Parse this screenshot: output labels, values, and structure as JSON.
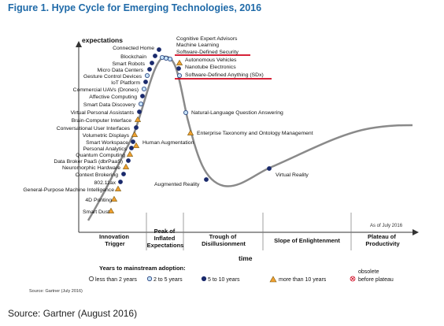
{
  "figure": {
    "title": "Figure 1. Hype Cycle for Emerging Technologies, 2016",
    "source_small": "Source: Gartner (July 2016)",
    "source_caption": "Source: Gartner (August 2016)"
  },
  "chart_data": {
    "type": "scatter",
    "title": "Hype Cycle for Emerging Technologies, 2016",
    "ylabel": "expectations",
    "xlabel": "time",
    "as_of": "As of July 2016",
    "phases": [
      "Innovation Trigger",
      "Peak of Inflated Expectations",
      "Trough of Disillusionment",
      "Slope of Enlightenment",
      "Plateau of Productivity"
    ],
    "legend": {
      "title": "Years to mainstream adoption:",
      "items": [
        {
          "key": "lt2",
          "label": "less than 2 years",
          "marker": "open-circle"
        },
        {
          "key": "2to5",
          "label": "2 to 5 years",
          "marker": "light-blue-circle"
        },
        {
          "key": "5to10",
          "label": "5 to 10 years",
          "marker": "dark-blue-circle"
        },
        {
          "key": "gt10",
          "label": "more than 10 years",
          "marker": "orange-triangle"
        },
        {
          "key": "obsolete",
          "label": "obsolete before plateau",
          "label_top": "obsolete",
          "label_bottom": "before plateau",
          "marker": "red-x-circle"
        }
      ]
    },
    "highlighted": [
      "Software-Defined Security",
      "Software-Defined Anything (SDx)"
    ],
    "technologies": [
      {
        "name": "Smart Dust",
        "category": "gt10"
      },
      {
        "name": "4D Printing",
        "category": "gt10"
      },
      {
        "name": "General-Purpose Machine Intelligence",
        "category": "gt10"
      },
      {
        "name": "802.11ax",
        "category": "5to10"
      },
      {
        "name": "Context Brokering",
        "category": "5to10"
      },
      {
        "name": "Neuromorphic Hardware",
        "category": "gt10"
      },
      {
        "name": "Data Broker PaaS (dbrPaaS)",
        "category": "5to10"
      },
      {
        "name": "Quantum Computing",
        "category": "gt10"
      },
      {
        "name": "Personal Analytics",
        "category": "5to10"
      },
      {
        "name": "Smart Workspace",
        "category": "5to10"
      },
      {
        "name": "Volumetric Displays",
        "category": "gt10"
      },
      {
        "name": "Conversational User Interfaces",
        "category": "5to10"
      },
      {
        "name": "Brain-Computer Interface",
        "category": "gt10"
      },
      {
        "name": "Virtual Personal Assistants",
        "category": "5to10"
      },
      {
        "name": "Smart Data Discovery",
        "category": "2to5"
      },
      {
        "name": "Affective Computing",
        "category": "5to10"
      },
      {
        "name": "Commercial UAVs (Drones)",
        "category": "2to5"
      },
      {
        "name": "IoT Platform",
        "category": "5to10"
      },
      {
        "name": "Gesture Control Devices",
        "category": "2to5"
      },
      {
        "name": "Micro Data Centers",
        "category": "5to10"
      },
      {
        "name": "Smart Robots",
        "category": "5to10"
      },
      {
        "name": "Blockchain",
        "category": "5to10"
      },
      {
        "name": "Connected Home",
        "category": "5to10"
      },
      {
        "name": "Cognitive Expert Advisors",
        "category": "2to5"
      },
      {
        "name": "Machine Learning",
        "category": "2to5"
      },
      {
        "name": "Software-Defined Security",
        "category": "2to5"
      },
      {
        "name": "Autonomous Vehicles",
        "category": "gt10"
      },
      {
        "name": "Nanotube Electronics",
        "category": "5to10"
      },
      {
        "name": "Software-Defined Anything (SDx)",
        "category": "2to5"
      },
      {
        "name": "Human Augmentation",
        "category": "gt10"
      },
      {
        "name": "Natural-Language Question Answering",
        "category": "2to5"
      },
      {
        "name": "Enterprise Taxonomy and Ontology Management",
        "category": "gt10"
      },
      {
        "name": "Augmented Reality",
        "category": "5to10"
      },
      {
        "name": "Virtual Reality",
        "category": "5to10"
      }
    ]
  }
}
